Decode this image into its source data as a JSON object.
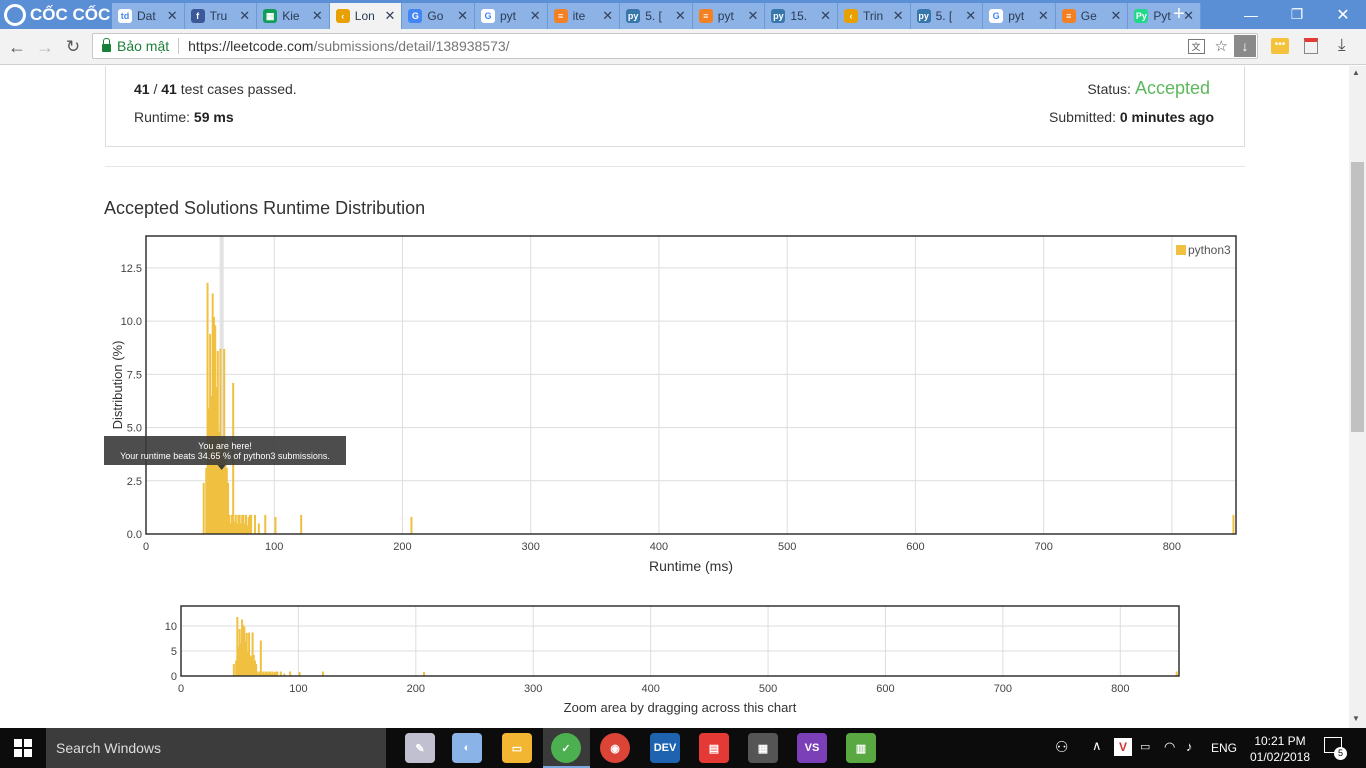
{
  "browser": {
    "brand": "CỐC CỐC",
    "tabs": [
      {
        "label": "Dat",
        "icon": "td-icon",
        "color": "#ffffff",
        "text": "td"
      },
      {
        "label": "Tru",
        "icon": "facebook-icon",
        "color": "#3b5998",
        "text": "f"
      },
      {
        "label": "Kie",
        "icon": "sheets-icon",
        "color": "#0f9d58",
        "text": "▦"
      },
      {
        "label": "Lon",
        "icon": "leetcode-icon",
        "color": "#e8a000",
        "text": "‹",
        "active": true
      },
      {
        "label": "Go",
        "icon": "translate-icon",
        "color": "#4285f4",
        "text": "G"
      },
      {
        "label": "pyt",
        "icon": "google-icon",
        "color": "#ffffff",
        "text": "G"
      },
      {
        "label": "ite",
        "icon": "stackoverflow-icon",
        "color": "#f48024",
        "text": "≡"
      },
      {
        "label": "5. [",
        "icon": "python-icon",
        "color": "#3776ab",
        "text": "py"
      },
      {
        "label": "pyt",
        "icon": "stackoverflow-icon",
        "color": "#f48024",
        "text": "≡"
      },
      {
        "label": "15.",
        "icon": "python-icon",
        "color": "#3776ab",
        "text": "py"
      },
      {
        "label": "Trin",
        "icon": "leetcode-icon",
        "color": "#e8a000",
        "text": "‹"
      },
      {
        "label": "5. [",
        "icon": "python-icon",
        "color": "#3776ab",
        "text": "py"
      },
      {
        "label": "pyt",
        "icon": "google-icon",
        "color": "#ffffff",
        "text": "G"
      },
      {
        "label": "Ge",
        "icon": "stackoverflow-icon",
        "color": "#f48024",
        "text": "≡"
      },
      {
        "label": "Pyt",
        "icon": "pycharm-icon",
        "color": "#21d789",
        "text": "Py"
      }
    ],
    "new_tab": "+",
    "secure_label": "Bảo mật",
    "url_host": "https://leetcode.com",
    "url_path": "/submissions/detail/138938573/"
  },
  "submission": {
    "cases_passed": "41",
    "cases_sep": " / ",
    "cases_total": "41",
    "cases_suffix": " test cases passed.",
    "runtime_label": "Runtime:",
    "runtime_value": "59 ms",
    "status_label": "Status:",
    "status_value": "Accepted",
    "submitted_label": "Submitted:",
    "submitted_value": "0 minutes ago"
  },
  "chart_heading": "Accepted Solutions Runtime Distribution",
  "chart_data": [
    {
      "type": "bar",
      "title": "",
      "xlabel": "Runtime (ms)",
      "ylabel": "Distribution (%)",
      "xlim": [
        0,
        850
      ],
      "ylim": [
        0,
        14
      ],
      "xticks": [
        "0",
        "100",
        "200",
        "300",
        "400",
        "500",
        "600",
        "700",
        "800"
      ],
      "yticks": [
        "0.0",
        "2.5",
        "5.0",
        "7.5",
        "10.0",
        "12.5"
      ],
      "grid": true,
      "legend": "top-right",
      "series": [
        {
          "name": "python3",
          "color": "#f0c040",
          "x": [
            45,
            47,
            48,
            49,
            50,
            51,
            52,
            53,
            54,
            55,
            56,
            57,
            58,
            59,
            60,
            61,
            62,
            63,
            64,
            65,
            66,
            67,
            68,
            69,
            70,
            71,
            72,
            73,
            74,
            75,
            76,
            77,
            78,
            79,
            80,
            81,
            82,
            85,
            88,
            93,
            101,
            121,
            207,
            848
          ],
          "values": [
            2.4,
            3.1,
            11.8,
            5.9,
            9.4,
            6.5,
            11.3,
            10.2,
            9.8,
            6.9,
            8.6,
            4.8,
            8.7,
            3.9,
            4.1,
            8.7,
            4.2,
            3.1,
            2.4,
            0.9,
            0.5,
            0.9,
            7.1,
            0.6,
            0.9,
            0.5,
            0.9,
            0.9,
            0.5,
            0.9,
            0.9,
            0.5,
            0.9,
            0.4,
            0.8,
            0.9,
            0.9,
            0.9,
            0.5,
            0.9,
            0.8,
            0.9,
            0.8,
            0.9
          ]
        }
      ],
      "highlight_x": 59,
      "tooltip": {
        "line1": "You are here!",
        "line2": "Your runtime beats 34.65 % of python3 submissions."
      }
    },
    {
      "type": "bar",
      "title": "",
      "xlabel": "Zoom area by dragging across this chart",
      "xlim": [
        0,
        850
      ],
      "ylim": [
        0,
        14
      ],
      "xticks": [
        "0",
        "100",
        "200",
        "300",
        "400",
        "500",
        "600",
        "700",
        "800"
      ],
      "yticks": [
        "0",
        "5",
        "10"
      ],
      "grid": true,
      "series": [
        {
          "name": "",
          "ref": 0
        }
      ]
    }
  ],
  "taskbar": {
    "search": "Search Windows",
    "time": "10:21 PM",
    "date": "01/02/2018",
    "lang": "ENG",
    "notif_count": "5"
  }
}
